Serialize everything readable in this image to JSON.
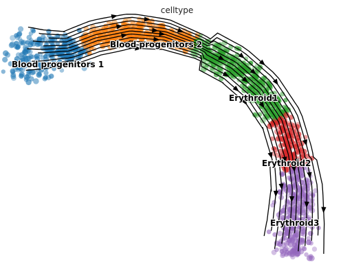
{
  "chart_data": {
    "type": "scatter",
    "subtype": "velocity-streamplot",
    "title": "celltype",
    "xlabel": "",
    "ylabel": "",
    "axes_visible": false,
    "grid": false,
    "legend": "on-data",
    "colors": {
      "blood_progenitors_1": "#1f77b4",
      "blood_progenitors_2": "#ff7f0e",
      "erythroid1": "#2ca02c",
      "erythroid2": "#d62728",
      "erythroid3": "#9467bd",
      "stream": "#000000"
    },
    "series": [
      {
        "name": "Blood progenitors 1",
        "key": "blood_progenitors_1"
      },
      {
        "name": "Blood progenitors 2",
        "key": "blood_progenitors_2"
      },
      {
        "name": "Erythroid1",
        "key": "erythroid1"
      },
      {
        "name": "Erythroid2",
        "key": "erythroid2"
      },
      {
        "name": "Erythroid3",
        "key": "erythroid3"
      }
    ]
  }
}
